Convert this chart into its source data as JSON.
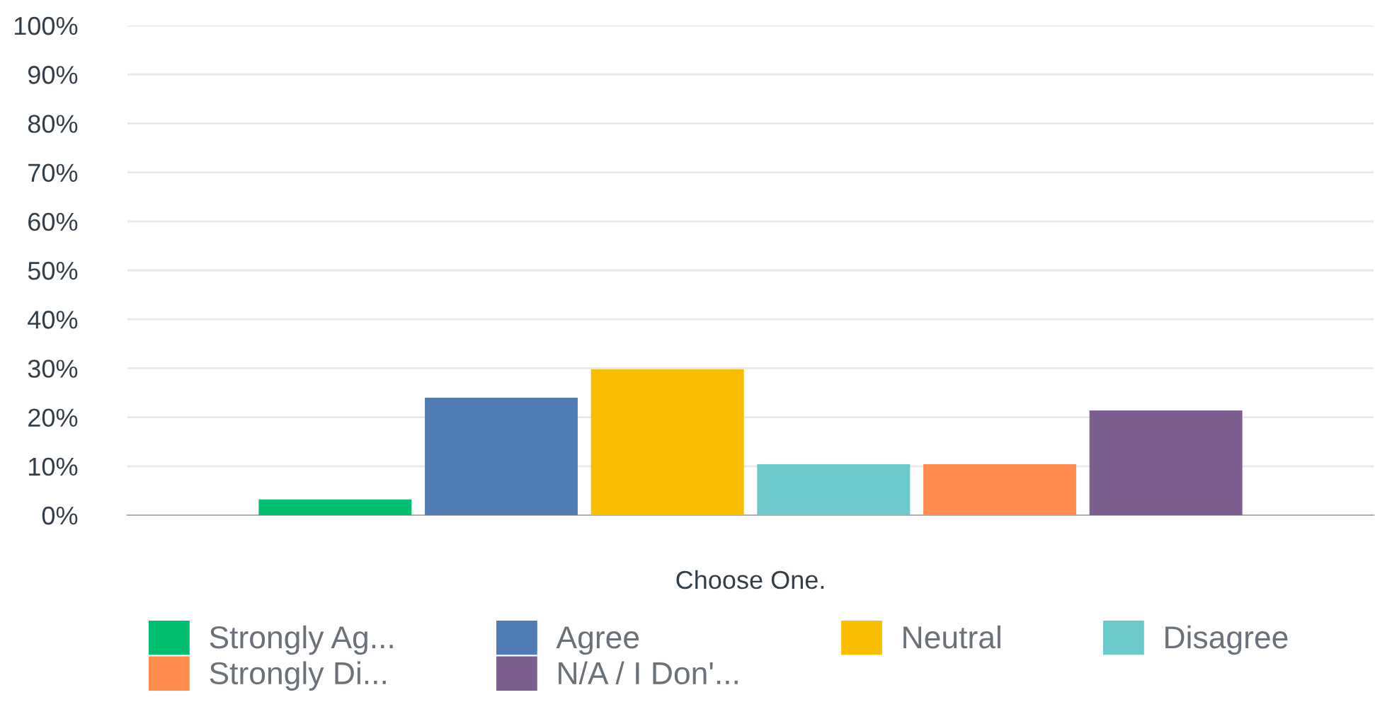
{
  "chart_data": {
    "type": "bar",
    "categories": [
      "Choose One."
    ],
    "series": [
      {
        "name": "Strongly Ag...",
        "color": "#00bf6f",
        "values": [
          3.2
        ]
      },
      {
        "name": "Agree",
        "color": "#507cb6",
        "values": [
          24.0
        ]
      },
      {
        "name": "Neutral",
        "color": "#f9be00",
        "values": [
          29.8
        ]
      },
      {
        "name": "Disagree",
        "color": "#6bc8cd",
        "values": [
          10.4
        ]
      },
      {
        "name": "Strongly Di...",
        "color": "#ff8b4f",
        "values": [
          10.4
        ]
      },
      {
        "name": "N/A / I Don'...",
        "color": "#7d5e90",
        "values": [
          21.4
        ]
      }
    ],
    "ylim": [
      0,
      100
    ],
    "yticks": [
      {
        "value": 0,
        "label": "0%"
      },
      {
        "value": 10,
        "label": "10%"
      },
      {
        "value": 20,
        "label": "20%"
      },
      {
        "value": 30,
        "label": "30%"
      },
      {
        "value": 40,
        "label": "40%"
      },
      {
        "value": 50,
        "label": "50%"
      },
      {
        "value": 60,
        "label": "60%"
      },
      {
        "value": 70,
        "label": "70%"
      },
      {
        "value": 80,
        "label": "80%"
      },
      {
        "value": 90,
        "label": "90%"
      },
      {
        "value": 100,
        "label": "100%"
      }
    ],
    "grid": "y",
    "legend": "bottom"
  }
}
